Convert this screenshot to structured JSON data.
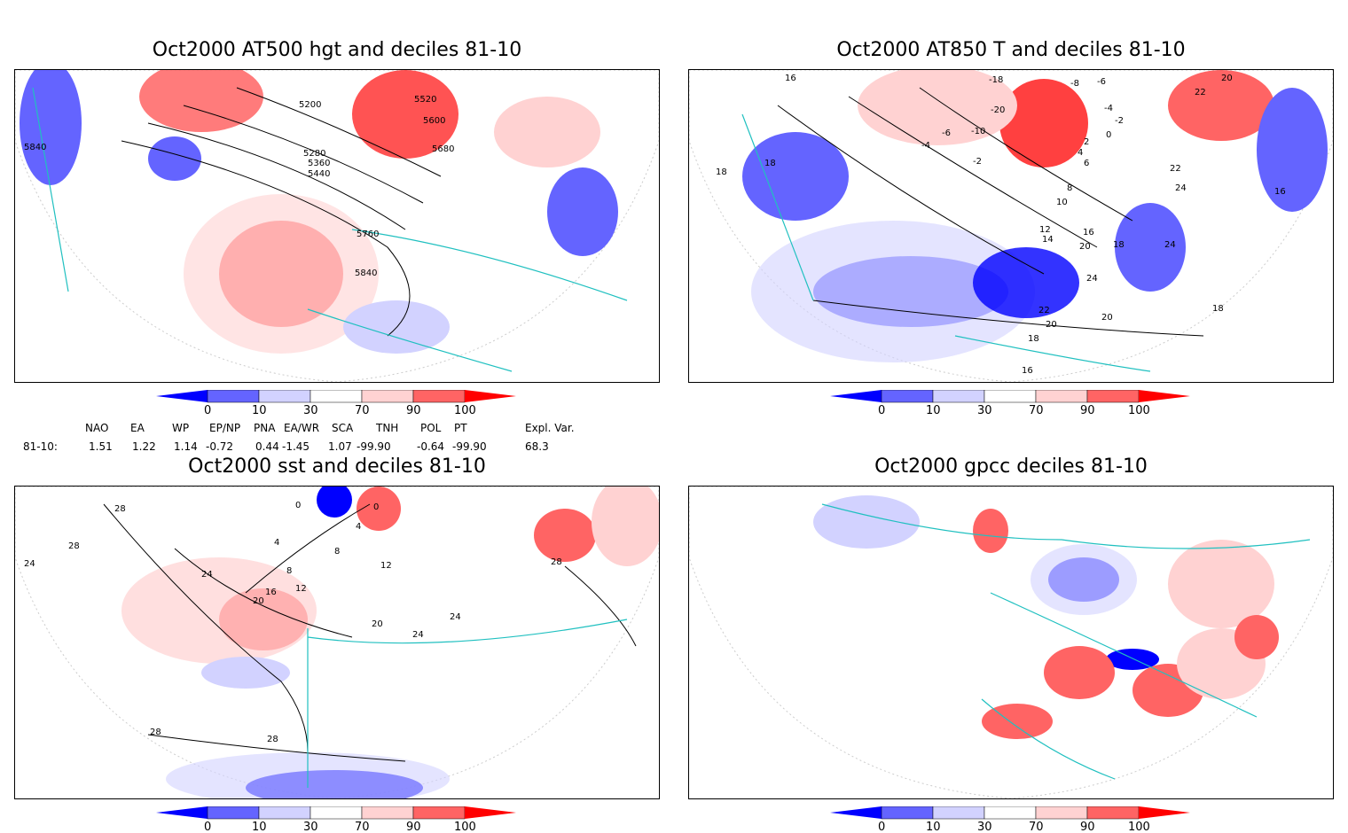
{
  "panels": [
    {
      "title": "Oct2000 AT500 hgt and deciles 81-10",
      "contour_labels": [
        "5200",
        "5520",
        "5600",
        "5680",
        "5280",
        "5360",
        "5440",
        "5760",
        "5840",
        "5840"
      ]
    },
    {
      "title": "Oct2000 AT850 T and deciles 81-10",
      "contour_labels": [
        "16",
        "-18",
        "-8",
        "-6",
        "20",
        "22",
        "-4",
        "-2",
        "18",
        "-20",
        "-10",
        "-6",
        "-4",
        "0",
        "2",
        "-2",
        "4",
        "6",
        "8",
        "22",
        "24",
        "16",
        "10",
        "12",
        "14",
        "16",
        "18",
        "20",
        "24",
        "24",
        "18",
        "22",
        "20",
        "20",
        "18",
        "16",
        "18"
      ]
    },
    {
      "title": "Oct2000 sst and deciles 81-10",
      "contour_labels": [
        "28",
        "0",
        "0",
        "4",
        "4",
        "24",
        "28",
        "8",
        "8",
        "12",
        "12",
        "16",
        "20",
        "24",
        "28",
        "20",
        "24",
        "24",
        "28",
        "28"
      ]
    },
    {
      "title": "Oct2000 gpcc deciles 81-10",
      "contour_labels": []
    }
  ],
  "colorbar": {
    "ticks": [
      "0",
      "10",
      "30",
      "70",
      "90",
      "100"
    ],
    "colors": [
      "#0000ff",
      "#6464ff",
      "#d2d2ff",
      "#ffffff",
      "#ffd2d2",
      "#ff6464",
      "#ff0000"
    ]
  },
  "indices": {
    "headers": [
      "NAO",
      "EA",
      "WP",
      "EP/NP",
      "PNA",
      "EA/WR",
      "SCA",
      "TNH",
      "POL",
      "PT",
      "Expl. Var."
    ],
    "row_label": "81-10:",
    "values": [
      "1.51",
      "1.22",
      "1.14",
      "-0.72",
      "0.44",
      "-1.45",
      "1.07",
      "-99.90",
      "-0.64",
      "-99.90",
      "68.3"
    ]
  },
  "colors": {
    "coast": "#20c0c0",
    "frame": "#000000"
  }
}
